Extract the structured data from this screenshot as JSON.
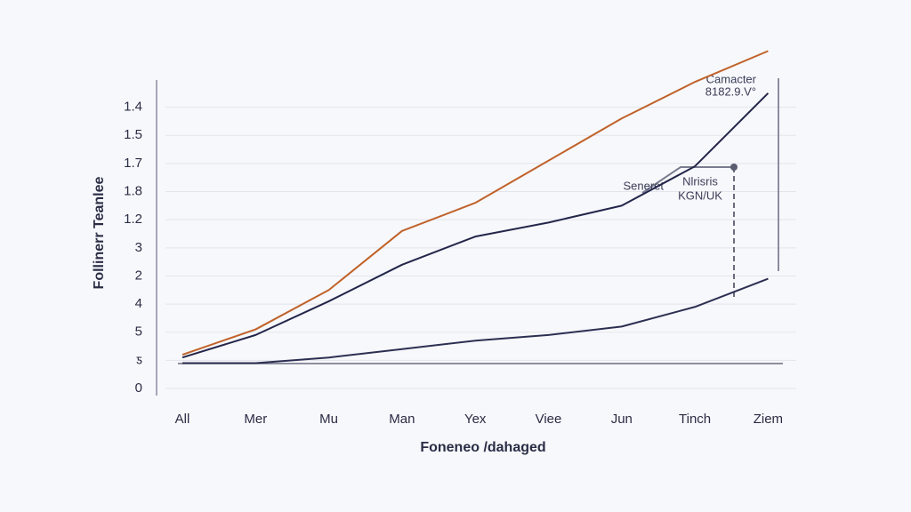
{
  "chart_data": {
    "type": "line",
    "y_label": "Follinerr Teanlee",
    "x_label": "Foneneo /dahaged",
    "categories": [
      "All",
      "Mer",
      "Mu",
      "Man",
      "Yex",
      "Viee",
      "Jun",
      "Tinch",
      "Ziem"
    ],
    "series": [
      {
        "color": "#c0622a",
        "values": [
          1.2,
          2.1,
          3.5,
          5.6,
          6.6,
          8.1,
          9.6,
          10.9,
          12
        ]
      },
      {
        "color": "#23264a",
        "values": [
          1.1,
          1.9,
          3.1,
          4.4,
          5.4,
          5.9,
          6.5,
          7.9,
          10.5
        ]
      },
      {
        "color": "#2c2f52",
        "values": [
          0.9,
          0.9,
          1.1,
          1.4,
          1.7,
          1.9,
          2.2,
          2.9,
          3.9
        ]
      }
    ],
    "ylim": [
      0,
      11
    ],
    "yticks": [
      {
        "value": 0,
        "label": "0"
      },
      {
        "value": 1,
        "label": "ƽ"
      },
      {
        "value": 2,
        "label": "5"
      },
      {
        "value": 3,
        "label": "4"
      },
      {
        "value": 4,
        "label": "2"
      },
      {
        "value": 5,
        "label": "3"
      },
      {
        "value": 6,
        "label": "1.2"
      },
      {
        "value": 7,
        "label": "1.8"
      },
      {
        "value": 8,
        "label": "1.7"
      },
      {
        "value": 9,
        "label": "1.5"
      },
      {
        "value": 10,
        "label": "1.4"
      }
    ],
    "grid": true,
    "annotations": [
      "Camacter",
      "8182.9.V°",
      "Seneret",
      "Nlrisris",
      "KGN/UK"
    ]
  }
}
